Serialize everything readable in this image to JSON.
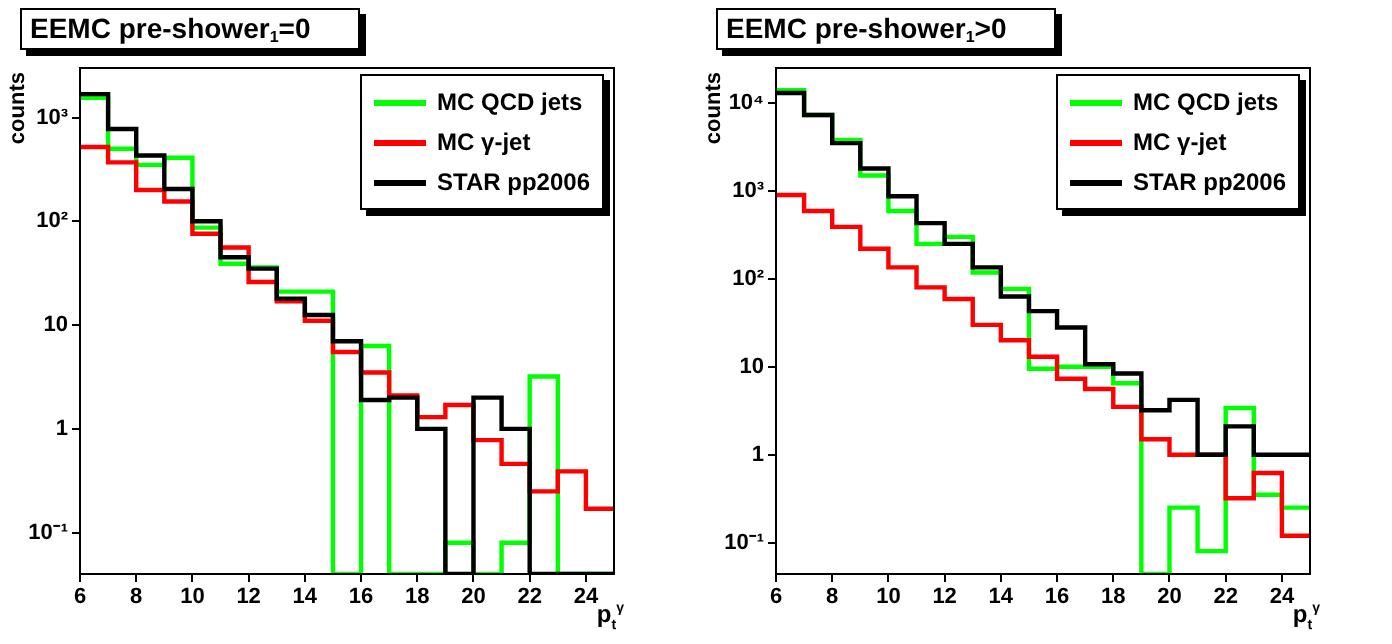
{
  "chart_data": [
    {
      "type": "histogram",
      "title": "EEMC pre-shower$_{1}$=0",
      "xlabel": "p$_{t}$$^{γ}$",
      "ylabel": "counts",
      "legend": "top right",
      "log": "y",
      "bins": [
        6,
        7,
        8,
        9,
        10,
        11,
        12,
        13,
        14,
        15,
        16,
        17,
        18,
        19,
        20,
        21,
        22,
        23,
        24,
        25
      ],
      "series": [
        {
          "name": "MC QCD jets",
          "color": "#00ff00",
          "values": [
            1550,
            500,
            350,
            410,
            87,
            39,
            36,
            21,
            21,
            null,
            6.3,
            null,
            null,
            0.08,
            null,
            0.08,
            3.2,
            null,
            null
          ]
        },
        {
          "name": "MC γ-jet",
          "color": "#ff0000",
          "values": [
            520,
            370,
            200,
            155,
            76,
            56,
            26,
            17,
            11,
            5.5,
            3.5,
            2.1,
            1.3,
            1.7,
            0.78,
            0.46,
            0.25,
            0.39,
            0.17
          ]
        },
        {
          "name": "STAR pp2006",
          "color": "#000000",
          "values": [
            1680,
            775,
            430,
            205,
            100,
            45,
            35,
            18,
            12.5,
            7,
            1.9,
            2,
            1,
            null,
            2,
            1,
            null,
            null,
            null
          ]
        }
      ],
      "xlim": [
        6,
        25
      ],
      "xticks": [
        6,
        8,
        10,
        12,
        14,
        16,
        18,
        20,
        22,
        24
      ],
      "ylim": [
        0.04,
        3000
      ],
      "yticks": [
        {
          "value": 0.1,
          "label": "10⁻¹"
        },
        {
          "value": 1,
          "label": "1"
        },
        {
          "value": 10,
          "label": "10"
        },
        {
          "value": 100,
          "label": "10²"
        },
        {
          "value": 1000,
          "label": "10³"
        }
      ]
    },
    {
      "type": "histogram",
      "title": "EEMC pre-shower$_{1}$>0",
      "xlabel": "p$_{t}$$^{γ}$",
      "ylabel": "counts",
      "legend": "top right",
      "log": "y",
      "bins": [
        6,
        7,
        8,
        9,
        10,
        11,
        12,
        13,
        14,
        15,
        16,
        17,
        18,
        19,
        20,
        21,
        22,
        23,
        24,
        25
      ],
      "series": [
        {
          "name": "MC QCD jets",
          "color": "#00ff00",
          "values": [
            14000,
            7300,
            3800,
            1500,
            590,
            250,
            300,
            118,
            77,
            9.5,
            10,
            10,
            6.5,
            null,
            0.25,
            0.08,
            3.4,
            0.35,
            0.25
          ]
        },
        {
          "name": "MC γ-jet",
          "color": "#ff0000",
          "values": [
            900,
            590,
            390,
            220,
            135,
            80,
            59,
            30,
            20,
            13,
            7.3,
            5.6,
            3.5,
            1.5,
            1,
            1,
            0.32,
            0.62,
            0.12
          ]
        },
        {
          "name": "STAR pp2006",
          "color": "#000000",
          "values": [
            13000,
            7300,
            3500,
            1800,
            870,
            430,
            250,
            135,
            63,
            43,
            28,
            10.7,
            8.4,
            3.2,
            4.2,
            1,
            2.1,
            1,
            1
          ]
        }
      ],
      "xlim": [
        6,
        25
      ],
      "xticks": [
        6,
        8,
        10,
        12,
        14,
        16,
        18,
        20,
        22,
        24
      ],
      "ylim": [
        0.044,
        25000
      ],
      "yticks": [
        {
          "value": 0.1,
          "label": "10⁻¹"
        },
        {
          "value": 1,
          "label": "1"
        },
        {
          "value": 10,
          "label": "10"
        },
        {
          "value": 100,
          "label": "10²"
        },
        {
          "value": 1000,
          "label": "10³"
        },
        {
          "value": 10000,
          "label": "10⁴"
        }
      ]
    }
  ]
}
